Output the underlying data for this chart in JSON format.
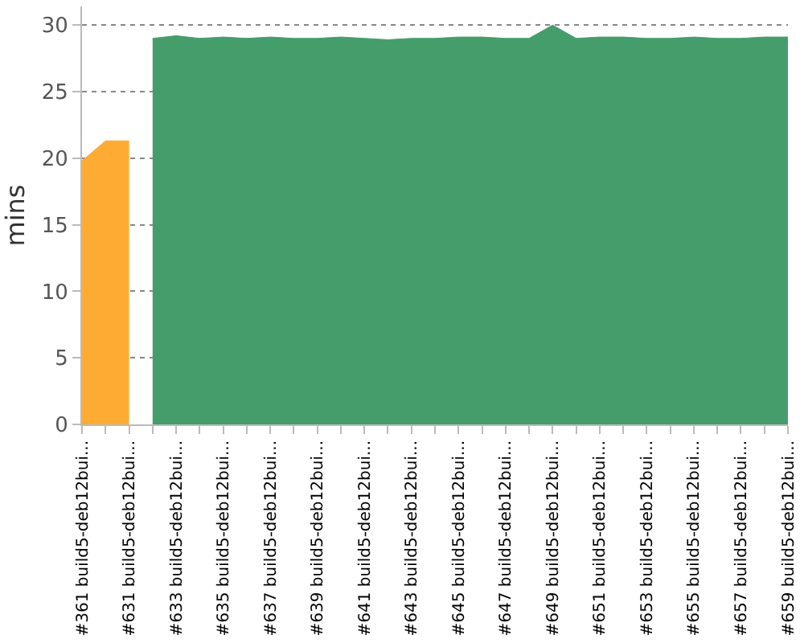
{
  "chart_data": {
    "type": "area",
    "ylabel": "mins",
    "categories": [
      "#361 build5-deb12bui...",
      null,
      "#631 build5-deb12bui...",
      null,
      "#633 build5-deb12bui...",
      null,
      "#635 build5-deb12bui...",
      null,
      "#637 build5-deb12bui...",
      null,
      "#639 build5-deb12bui...",
      null,
      "#641 build5-deb12bui...",
      null,
      "#643 build5-deb12bui...",
      null,
      "#645 build5-deb12bui...",
      null,
      "#647 build5-deb12bui...",
      null,
      "#649 build5-deb12bui...",
      null,
      "#651 build5-deb12bui...",
      null,
      "#653 build5-deb12bui...",
      null,
      "#655 build5-deb12bui...",
      null,
      "#657 build5-deb12bui...",
      null,
      "#659 build5-deb12bui..."
    ],
    "series": [
      {
        "color": "#feab33",
        "values": [
          19.8,
          21.3,
          21.3,
          null,
          null,
          null,
          null,
          null,
          null,
          null,
          null,
          null,
          null,
          null,
          null,
          null,
          null,
          null,
          null,
          null,
          null,
          null,
          null,
          null,
          null,
          null,
          null,
          null,
          null,
          null,
          null
        ]
      },
      {
        "color": "#459d6c",
        "values": [
          null,
          null,
          null,
          29.0,
          29.2,
          29.0,
          29.1,
          29.0,
          29.1,
          29.0,
          29.0,
          29.1,
          29.0,
          28.9,
          29.0,
          29.0,
          29.1,
          29.1,
          29.0,
          29.0,
          30.0,
          29.0,
          29.1,
          29.1,
          29.0,
          29.0,
          29.1,
          29.0,
          29.0,
          29.1,
          29.1
        ]
      }
    ],
    "ylim": [
      0,
      31.4
    ],
    "yticks": [
      0,
      5,
      10,
      15,
      20,
      25,
      30
    ],
    "grid": "y"
  }
}
